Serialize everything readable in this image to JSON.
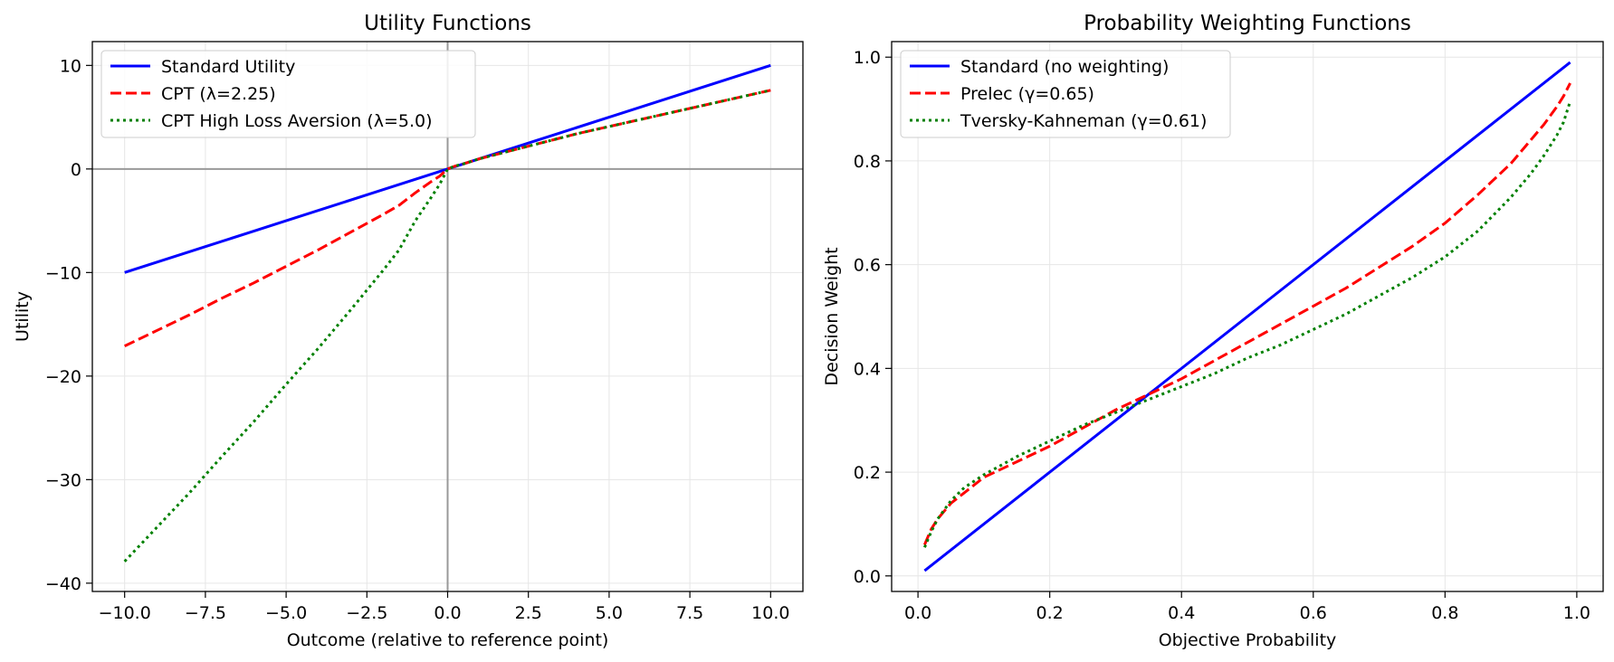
{
  "chart_data": [
    {
      "type": "line",
      "title": "Utility Functions",
      "xlabel": "Outcome (relative to reference point)",
      "ylabel": "Utility",
      "xlim": [
        -11,
        11
      ],
      "ylim": [
        -40.8,
        12.3
      ],
      "xticks": [
        -10,
        -7.5,
        -5,
        -2.5,
        0,
        2.5,
        5,
        7.5,
        10
      ],
      "xtick_labels": [
        "−10.0",
        "−7.5",
        "−5.0",
        "−2.5",
        "0.0",
        "2.5",
        "5.0",
        "7.5",
        "10.0"
      ],
      "yticks": [
        -40,
        -30,
        -20,
        -10,
        0,
        10
      ],
      "ytick_labels": [
        "−40",
        "−30",
        "−20",
        "−10",
        "0",
        "10"
      ],
      "grid": true,
      "reference_lines": {
        "x": 0,
        "y": 0,
        "color": "#999999"
      },
      "legend_placement": "upper-left",
      "series": [
        {
          "name": "Standard Utility",
          "color": "#0000ff",
          "dash": "solid",
          "x": [
            -10,
            -7.5,
            -5,
            -2.5,
            0,
            2.5,
            5,
            7.5,
            10
          ],
          "y": [
            -10,
            -7.5,
            -5,
            -2.5,
            0,
            2.5,
            5,
            7.5,
            10
          ]
        },
        {
          "name": "CPT (λ=2.25)",
          "color": "#ff0000",
          "dash": "dashed",
          "x": [
            -10,
            -9,
            -8,
            -7,
            -6,
            -5,
            -4,
            -3,
            -2,
            -1.5,
            -1,
            -0.5,
            -0.25,
            0,
            0.25,
            0.5,
            1,
            1.5,
            2,
            3,
            4,
            5,
            6,
            7,
            8,
            9,
            10
          ],
          "y": [
            -17.1,
            -15.6,
            -14.1,
            -12.5,
            -11.0,
            -9.4,
            -7.8,
            -6.1,
            -4.4,
            -3.5,
            -2.3,
            -1.2,
            -0.7,
            0,
            0.3,
            0.5,
            1.0,
            1.4,
            1.8,
            2.6,
            3.4,
            4.1,
            4.8,
            5.5,
            6.2,
            6.9,
            7.6
          ]
        },
        {
          "name": "CPT High Loss Aversion (λ=5.0)",
          "color": "#008000",
          "dash": "dotted",
          "x": [
            -10,
            -9,
            -8,
            -7,
            -6,
            -5,
            -4,
            -3,
            -2,
            -1.5,
            -1,
            -0.5,
            -0.25,
            0,
            0.25,
            0.5,
            1,
            1.5,
            2,
            3,
            4,
            5,
            6,
            7,
            8,
            9,
            10
          ],
          "y": [
            -37.9,
            -34.6,
            -31.3,
            -27.8,
            -24.4,
            -20.8,
            -17.3,
            -13.6,
            -9.8,
            -7.8,
            -5.0,
            -2.7,
            -1.5,
            0,
            0.3,
            0.5,
            1.0,
            1.4,
            1.8,
            2.6,
            3.4,
            4.1,
            4.8,
            5.5,
            6.2,
            6.9,
            7.6
          ]
        }
      ]
    },
    {
      "type": "line",
      "title": "Probability Weighting Functions",
      "xlabel": "Objective Probability",
      "ylabel": "Decision Weight",
      "xlim": [
        -0.04,
        1.04
      ],
      "ylim": [
        -0.03,
        1.03
      ],
      "xticks": [
        0,
        0.2,
        0.4,
        0.6,
        0.8,
        1.0
      ],
      "xtick_labels": [
        "0.0",
        "0.2",
        "0.4",
        "0.6",
        "0.8",
        "1.0"
      ],
      "yticks": [
        0,
        0.2,
        0.4,
        0.6,
        0.8,
        1.0
      ],
      "ytick_labels": [
        "0.0",
        "0.2",
        "0.4",
        "0.6",
        "0.8",
        "1.0"
      ],
      "grid": true,
      "legend_placement": "upper-left",
      "series": [
        {
          "name": "Standard (no weighting)",
          "color": "#0000ff",
          "dash": "solid",
          "x": [
            0.01,
            0.99
          ],
          "y": [
            0.01,
            0.99
          ]
        },
        {
          "name": "Prelec (γ=0.65)",
          "color": "#ff0000",
          "dash": "dashed",
          "x": [
            0.01,
            0.02,
            0.03,
            0.05,
            0.07,
            0.1,
            0.15,
            0.2,
            0.25,
            0.3,
            0.35,
            0.4,
            0.45,
            0.5,
            0.55,
            0.6,
            0.65,
            0.7,
            0.75,
            0.8,
            0.85,
            0.9,
            0.93,
            0.95,
            0.97,
            0.98,
            0.99
          ],
          "y": [
            0.06,
            0.09,
            0.11,
            0.14,
            0.16,
            0.19,
            0.22,
            0.25,
            0.285,
            0.32,
            0.35,
            0.38,
            0.415,
            0.45,
            0.485,
            0.52,
            0.555,
            0.595,
            0.635,
            0.68,
            0.735,
            0.795,
            0.84,
            0.87,
            0.905,
            0.925,
            0.95
          ]
        },
        {
          "name": "Tversky-Kahneman (γ=0.61)",
          "color": "#008000",
          "dash": "dotted",
          "x": [
            0.01,
            0.02,
            0.03,
            0.05,
            0.07,
            0.1,
            0.15,
            0.2,
            0.25,
            0.3,
            0.35,
            0.4,
            0.45,
            0.5,
            0.55,
            0.6,
            0.65,
            0.7,
            0.75,
            0.8,
            0.85,
            0.9,
            0.93,
            0.95,
            0.97,
            0.98,
            0.99
          ],
          "y": [
            0.055,
            0.085,
            0.11,
            0.145,
            0.17,
            0.195,
            0.23,
            0.26,
            0.29,
            0.315,
            0.34,
            0.365,
            0.39,
            0.42,
            0.445,
            0.475,
            0.505,
            0.54,
            0.575,
            0.615,
            0.665,
            0.73,
            0.775,
            0.81,
            0.85,
            0.875,
            0.915
          ]
        }
      ]
    }
  ]
}
